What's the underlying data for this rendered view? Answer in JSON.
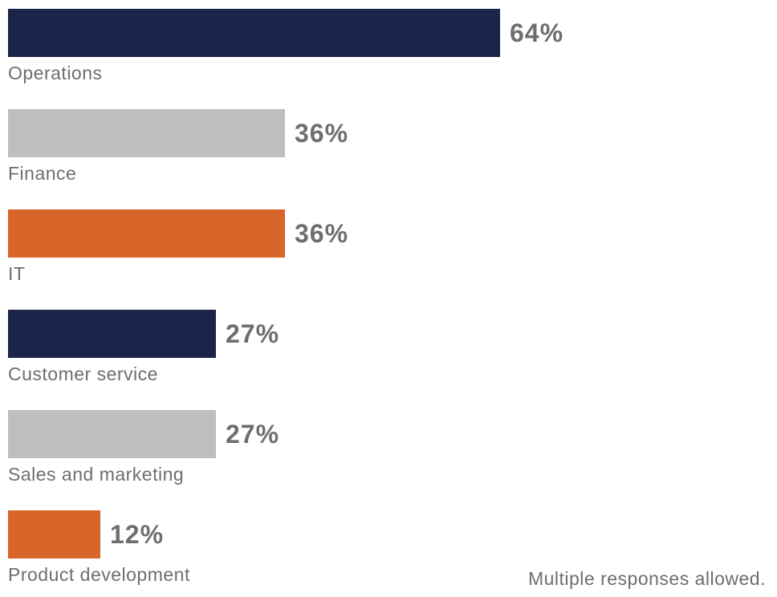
{
  "colors": {
    "navy": "#1b2449",
    "gray": "#bcbec0",
    "orange": "#d8652a",
    "text": "#6d6e71",
    "background": "#ffffff"
  },
  "chart_data": {
    "type": "bar",
    "orientation": "horizontal",
    "title": "",
    "xlabel": "",
    "ylabel": "",
    "xlim": [
      0,
      100
    ],
    "grid": false,
    "legend": false,
    "categories": [
      "Operations",
      "Finance",
      "IT",
      "Customer service",
      "Sales and marketing",
      "Product development"
    ],
    "values": [
      64,
      36,
      36,
      27,
      27,
      12
    ],
    "value_labels": [
      "64%",
      "36%",
      "36%",
      "27%",
      "27%",
      "12%"
    ],
    "bar_colors": [
      "#1b2449",
      "#bcbec0",
      "#d8652a",
      "#1b2449",
      "#bcbec0",
      "#d8652a"
    ],
    "note": "Multiple responses allowed."
  }
}
